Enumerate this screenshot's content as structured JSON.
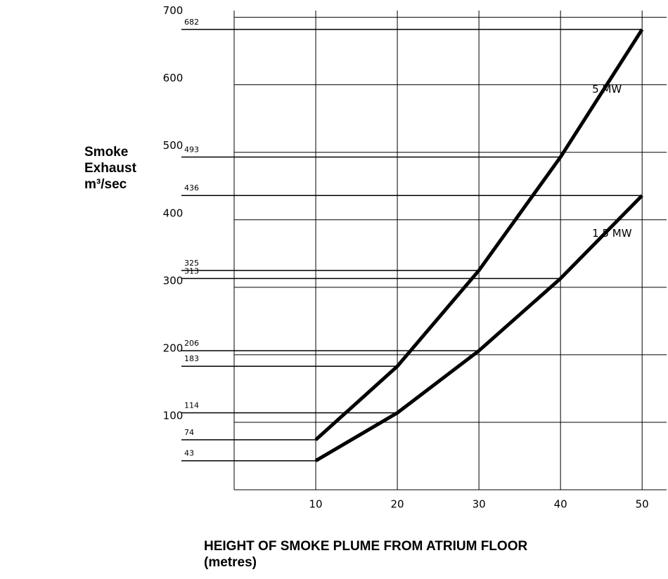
{
  "chart_data": {
    "type": "line",
    "y_label": [
      "Smoke",
      "Exhaust",
      "m³/sec"
    ],
    "x_label": [
      "HEIGHT OF SMOKE PLUME FROM ATRIUM FLOOR",
      "(metres)"
    ],
    "x": [
      10,
      20,
      30,
      40,
      50
    ],
    "series": [
      {
        "name": "5 MW",
        "color": "#000000",
        "values": [
          74,
          183,
          325,
          493,
          682
        ]
      },
      {
        "name": "1.5 MW",
        "color": "#000000",
        "values": [
          43,
          114,
          206,
          313,
          436
        ]
      }
    ],
    "xlim": [
      0,
      53
    ],
    "xticks": [
      10,
      20,
      30,
      40,
      50
    ],
    "ylim": [
      0,
      710
    ],
    "yticks": [
      100,
      200,
      300,
      400,
      500,
      600,
      700
    ],
    "grid": true
  }
}
